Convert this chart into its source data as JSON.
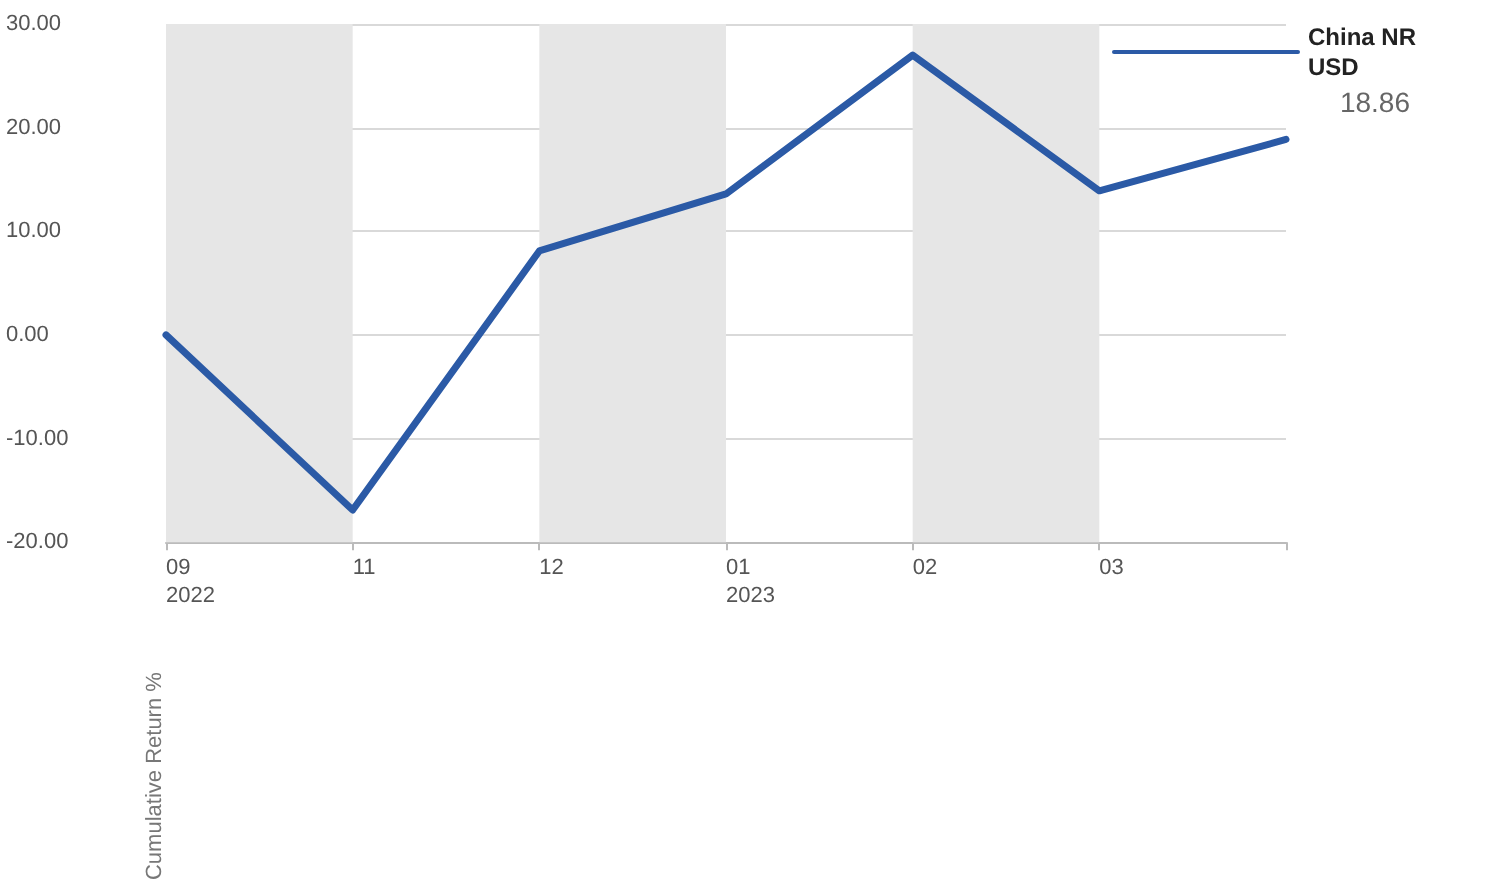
{
  "chart_data": {
    "type": "line",
    "ylabel": "Cumulative Return %",
    "categories": [
      "09\n2022",
      "11",
      "12",
      "01\n2023",
      "02",
      "03",
      null
    ],
    "series": [
      {
        "name": "China NR USD",
        "color": "#2b5aa6",
        "values": [
          0,
          -16.9,
          8.1,
          13.6,
          27.0,
          13.9,
          18.86
        ]
      }
    ],
    "ylim": [
      -20,
      30
    ],
    "yticks": [
      {
        "value": -20,
        "label": "-20.00"
      },
      {
        "value": -10,
        "label": "-10.00"
      },
      {
        "value": 0,
        "label": "0.00"
      },
      {
        "value": 10,
        "label": "10.00"
      },
      {
        "value": 20,
        "label": "20.00"
      },
      {
        "value": 30,
        "label": "30.00"
      }
    ],
    "bands": [
      {
        "axis": "x",
        "from": "09\n2022",
        "to": "11",
        "color": "#e6e6e6"
      },
      {
        "axis": "x",
        "from": "12",
        "to": "01\n2023",
        "color": "#e6e6e6"
      },
      {
        "axis": "x",
        "from": "02",
        "to": "03",
        "color": "#e6e6e6"
      }
    ],
    "annotations": [
      "18.86"
    ],
    "grid": "y",
    "legend": "top right",
    "marker": "none",
    "line_style": "solid"
  }
}
